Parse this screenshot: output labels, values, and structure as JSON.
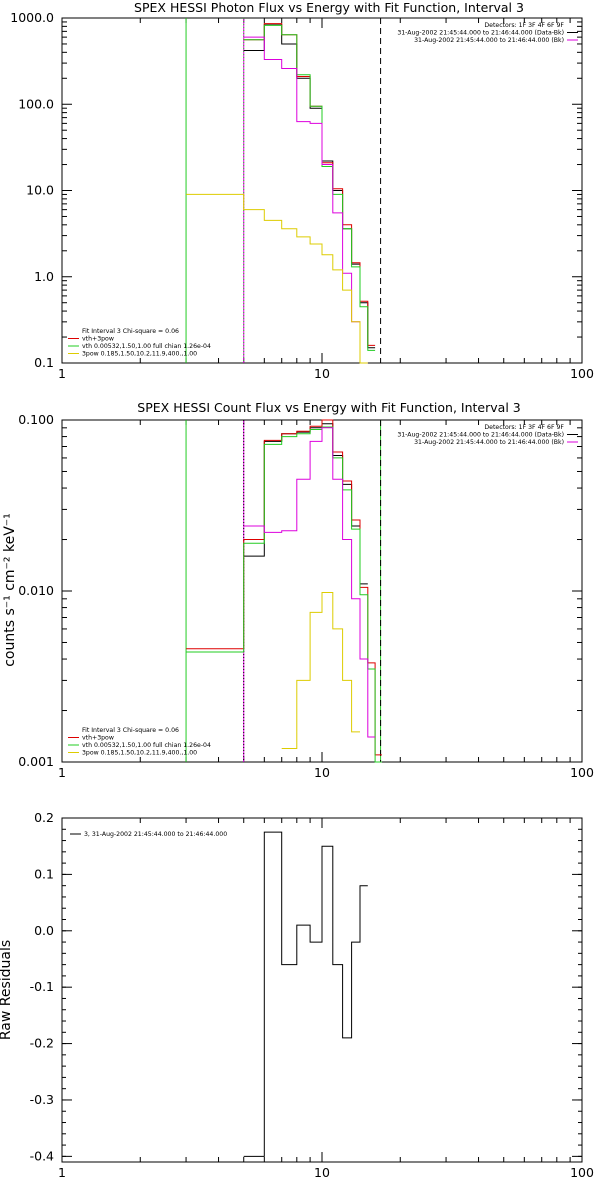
{
  "chart_data": [
    {
      "type": "line",
      "title": "SPEX HESSI Photon Flux vs Energy with Fit Function, Interval 3",
      "xscale": "log",
      "yscale": "log",
      "xlim": [
        1,
        100
      ],
      "ylim": [
        0.1,
        1000
      ],
      "x_ticks": [
        1,
        10,
        100
      ],
      "x_tick_labels": [
        "1",
        "10",
        "100"
      ],
      "y_ticks": [
        0.1,
        1,
        10,
        100,
        1000
      ],
      "y_tick_labels": [
        "0.1",
        "1.0",
        "10.0",
        "100.0",
        "1000.0"
      ],
      "edges": [
        3,
        4,
        5,
        6,
        7,
        8,
        9,
        10,
        11,
        12,
        13,
        14,
        15,
        16,
        17
      ],
      "vlines": [
        {
          "x": 3.0,
          "color": "#22cc22",
          "style": "solid"
        },
        {
          "x": 5.0,
          "color": "#dd00dd",
          "style": "solid"
        },
        {
          "x": 5.0,
          "color": "#22cc22",
          "style": "dotted"
        },
        {
          "x": 16.8,
          "color": "#000000",
          "style": "dashed"
        }
      ],
      "series": [
        {
          "color": "#000000",
          "values": [
            null,
            null,
            420,
            850,
            500,
            200,
            90,
            22,
            10,
            3.6,
            1.4,
            0.5,
            0.15,
            null
          ]
        },
        {
          "color": "#dd0000",
          "values": [
            null,
            null,
            560,
            860,
            640,
            210,
            95,
            21,
            10.5,
            4,
            1.45,
            0.52,
            0.16,
            null
          ]
        },
        {
          "color": "#22cc22",
          "values": [
            null,
            null,
            560,
            820,
            640,
            220,
            95,
            19,
            9,
            3.6,
            1.3,
            0.45,
            0.14,
            null
          ]
        },
        {
          "color": "#dd00dd",
          "values": [
            null,
            null,
            600,
            330,
            260,
            63,
            60,
            20,
            5.5,
            1.1,
            0.3,
            0.1,
            null,
            null
          ]
        },
        {
          "color": "#ddcc00",
          "values": [
            9,
            9,
            6,
            4.5,
            3.6,
            2.9,
            2.4,
            1.8,
            1.2,
            0.7,
            0.3,
            0.09,
            null,
            null
          ]
        }
      ],
      "legend_top_right": {
        "lines": [
          "Detectors: 1F 3F 4F 6F 9F",
          "31-Aug-2002 21:45:44.000 to 21:46:44.000 (Data-Bk)",
          "31-Aug-2002 21:45:44.000 to 21:46:44.000 (Bk)"
        ],
        "colors": [
          "",
          "#000000",
          "#dd00dd"
        ]
      },
      "legend_bottom_left": {
        "lines": [
          "Fit Interval 3   Chi-square = 0.06",
          "vth+3pow",
          "vth 0.00532,1.50,1.00  full chian 1.26e-04",
          "3pow 0.185,1.50,10.2,11.9,400.,1.00"
        ],
        "colors": [
          "",
          "#dd0000",
          "#22cc22",
          "#ddcc00"
        ]
      }
    },
    {
      "type": "line",
      "title": "SPEX HESSI Count Flux vs Energy with Fit Function, Interval 3",
      "ylabel": "counts s⁻¹ cm⁻² keV⁻¹",
      "xscale": "log",
      "yscale": "log",
      "xlim": [
        1,
        100
      ],
      "ylim": [
        0.001,
        0.1
      ],
      "x_ticks": [
        1,
        10,
        100
      ],
      "x_tick_labels": [
        "1",
        "10",
        "100"
      ],
      "y_ticks": [
        0.001,
        0.01,
        0.1
      ],
      "y_tick_labels": [
        "0.001",
        "0.010",
        "0.100"
      ],
      "edges": [
        3,
        4,
        5,
        6,
        7,
        8,
        9,
        10,
        11,
        12,
        13,
        14,
        15,
        16,
        17,
        18,
        19,
        20
      ],
      "vlines": [
        {
          "x": 3.0,
          "color": "#22cc22",
          "style": "solid"
        },
        {
          "x": 5.0,
          "color": "#dd00dd",
          "style": "solid"
        },
        {
          "x": 5.0,
          "color": "#000000",
          "style": "dotted"
        },
        {
          "x": 16.8,
          "color": "#22cc22",
          "style": "solid"
        },
        {
          "x": 16.8,
          "color": "#000000",
          "style": "dashed"
        }
      ],
      "series": [
        {
          "color": "#000000",
          "values": [
            null,
            null,
            0.016,
            0.075,
            0.083,
            0.085,
            0.09,
            0.095,
            0.062,
            0.042,
            0.024,
            0.011,
            null,
            null,
            null,
            null,
            null
          ]
        },
        {
          "color": "#dd0000",
          "values": [
            0.0046,
            0.0046,
            0.02,
            0.076,
            0.083,
            0.086,
            0.092,
            0.1,
            0.065,
            0.044,
            0.026,
            0.0105,
            0.0038,
            0.0011,
            null,
            null,
            null
          ]
        },
        {
          "color": "#22cc22",
          "values": [
            0.0044,
            0.0044,
            0.019,
            0.072,
            0.08,
            0.083,
            0.088,
            0.091,
            0.06,
            0.039,
            0.023,
            0.0095,
            0.0035,
            0.001,
            null,
            null,
            null
          ]
        },
        {
          "color": "#dd00dd",
          "values": [
            null,
            null,
            0.024,
            0.022,
            0.0225,
            0.045,
            0.075,
            0.09,
            0.045,
            0.02,
            0.009,
            0.004,
            0.0014,
            null,
            null,
            null,
            null
          ]
        },
        {
          "color": "#ddcc00",
          "values": [
            null,
            null,
            null,
            null,
            0.0012,
            0.003,
            0.0075,
            0.0098,
            0.006,
            0.003,
            0.0015,
            null,
            null,
            null,
            null,
            null,
            null
          ]
        }
      ],
      "legend_top_right": {
        "lines": [
          "Detectors: 1F 3F 4F 6F 9F",
          "31-Aug-2002 21:45:44.000 to 21:46:44.000 (Data-Bk)",
          "31-Aug-2002 21:45:44.000 to 21:46:44.000 (Bk)"
        ],
        "colors": [
          "",
          "#000000",
          "#dd00dd"
        ]
      },
      "legend_bottom_left": {
        "lines": [
          "Fit Interval 3   Chi-square = 0.06",
          "vth+3pow",
          "vth 0.00532,1.50,1.00  full chian 1.26e-04",
          "3pow 0.185,1.50,10.2,11.9,400.,1.00"
        ],
        "colors": [
          "",
          "#dd0000",
          "#22cc22",
          "#ddcc00"
        ]
      }
    },
    {
      "type": "line",
      "ylabel": "Raw Residuals",
      "xscale": "log",
      "yscale": "linear",
      "xlim": [
        1,
        100
      ],
      "ylim": [
        -0.41,
        0.2
      ],
      "x_ticks": [
        1,
        10,
        100
      ],
      "x_tick_labels": [
        "1",
        "10",
        "100"
      ],
      "y_ticks": [
        -0.4,
        -0.3,
        -0.2,
        -0.1,
        0.0,
        0.1,
        0.2
      ],
      "y_tick_labels": [
        "-0.4",
        "-0.3",
        "-0.2",
        "-0.1",
        "0.0",
        "0.1",
        "0.2"
      ],
      "edges": [
        5,
        6,
        7,
        8,
        9,
        10,
        11,
        12,
        13,
        14,
        15,
        16.8
      ],
      "series": [
        {
          "color": "#000000",
          "values": [
            -0.4,
            0.175,
            -0.06,
            0.01,
            -0.02,
            0.15,
            -0.06,
            -0.19,
            -0.02,
            0.08,
            null
          ]
        }
      ],
      "legend_top_left": {
        "lines": [
          "3, 31-Aug-2002 21:45:44.000 to 21:46:44.000"
        ],
        "colors": [
          "#000000"
        ]
      }
    }
  ]
}
